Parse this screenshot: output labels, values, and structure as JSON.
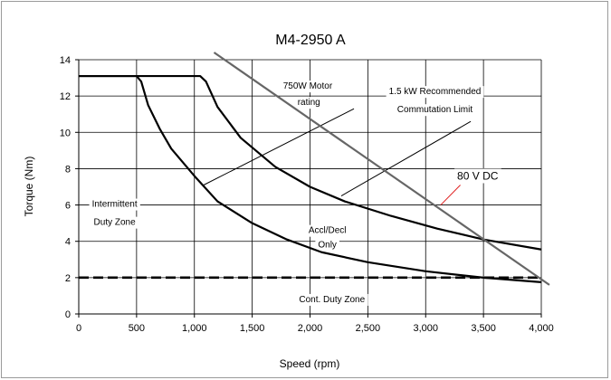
{
  "chart_data": {
    "type": "line",
    "title": "M4-2950 A",
    "xlabel": "Speed (rpm)",
    "ylabel": "Torque (Nm)",
    "xlim": [
      0,
      4000
    ],
    "ylim": [
      0,
      14
    ],
    "x_ticks": [
      0,
      500,
      1000,
      1500,
      2000,
      2500,
      3000,
      3500,
      4000
    ],
    "x_tick_labels": [
      "0",
      "500",
      "1,000",
      "1,500",
      "2,000",
      "2,500",
      "3,000",
      "3,500",
      "4,000"
    ],
    "y_ticks": [
      0,
      2,
      4,
      6,
      8,
      10,
      12,
      14
    ],
    "y_tick_labels": [
      "0",
      "2",
      "4",
      "6",
      "8",
      "10",
      "12",
      "14"
    ],
    "grid": true,
    "series": [
      {
        "x": [
          0,
          500,
          540,
          600,
          700,
          800,
          1000,
          1200,
          1500,
          1800,
          2100,
          2500,
          3000,
          3500,
          4000
        ],
        "y": [
          13.1,
          13.1,
          12.8,
          11.5,
          10.2,
          9.1,
          7.6,
          6.2,
          5.0,
          4.1,
          3.4,
          2.85,
          2.35,
          2.0,
          1.75
        ],
        "color": "#000000",
        "style": "solid"
      },
      {
        "x": [
          0,
          1050,
          1100,
          1200,
          1400,
          1700,
          2000,
          2300,
          2700,
          3100,
          3500,
          4000
        ],
        "y": [
          13.1,
          13.1,
          12.8,
          11.4,
          9.7,
          8.1,
          7.0,
          6.2,
          5.4,
          4.7,
          4.1,
          3.55
        ],
        "color": "#000000",
        "style": "solid"
      },
      {
        "x": [
          0,
          4000
        ],
        "y": [
          2.0,
          2.0
        ],
        "color": "#000000",
        "style": "dashed"
      },
      {
        "x": [
          1170,
          4070
        ],
        "y": [
          14.4,
          1.6
        ],
        "color": "#666666",
        "style": "solid"
      }
    ],
    "annotations": [
      {
        "text": "750W Motor",
        "x": 1980,
        "y": 12.6
      },
      {
        "text": "rating",
        "x": 1990,
        "y": 11.7
      },
      {
        "text": "1.5 kW Recommended",
        "x": 3080,
        "y": 12.3
      },
      {
        "text": "Commutation Limit",
        "x": 3080,
        "y": 11.3
      },
      {
        "text": "Intermittent",
        "x": 310,
        "y": 6.1
      },
      {
        "text": "Duty Zone",
        "x": 310,
        "y": 5.1
      },
      {
        "text": "Accl/Decl",
        "x": 2150,
        "y": 4.65
      },
      {
        "text": "Only",
        "x": 2150,
        "y": 3.85
      },
      {
        "text": "Cont. Duty Zone",
        "x": 2190,
        "y": 0.85
      },
      {
        "text": "80 V DC",
        "x": 3450,
        "y": 7.6
      }
    ],
    "annotation_lines": [
      {
        "x": [
          1080,
          2380
        ],
        "y": [
          7.1,
          11.3
        ],
        "color": "#000000"
      },
      {
        "x": [
          2270,
          3390
        ],
        "y": [
          6.5,
          10.6
        ],
        "color": "#000000"
      },
      {
        "x": [
          3130,
          3300
        ],
        "y": [
          6.0,
          7.1
        ],
        "color": "#e02020"
      }
    ],
    "colors": {
      "curves": "#000000",
      "limit_line": "#666666",
      "pointer_80v": "#e02020",
      "grid": "#000000"
    }
  }
}
